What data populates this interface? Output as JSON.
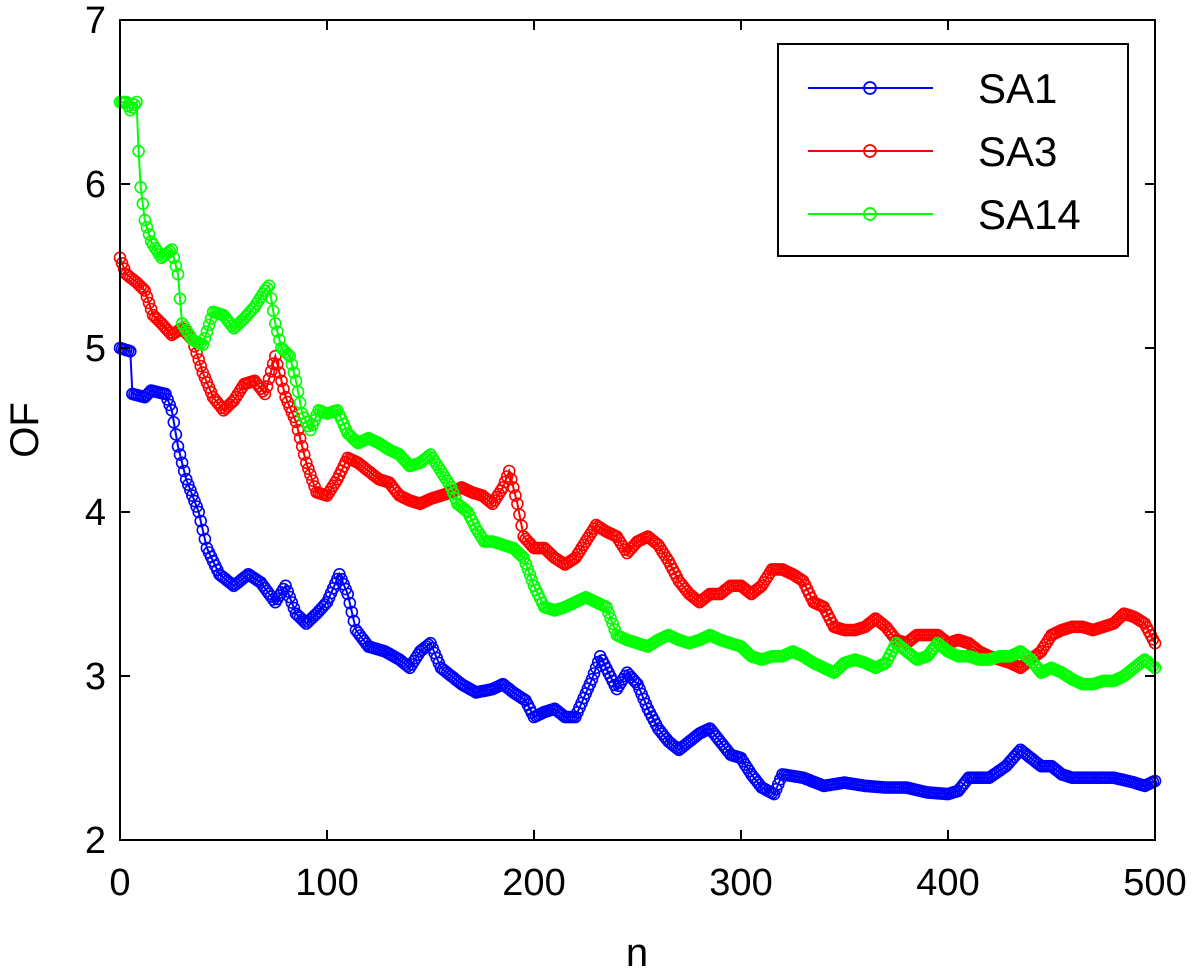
{
  "chart_data": {
    "type": "line",
    "title": "",
    "xlabel": "n",
    "ylabel": "OF",
    "xlim": [
      0,
      500
    ],
    "ylim": [
      2,
      7
    ],
    "xticks": [
      0,
      100,
      200,
      300,
      400,
      500
    ],
    "yticks": [
      2,
      3,
      4,
      5,
      6,
      7
    ],
    "xtick_labels": [
      "0",
      "100",
      "200",
      "300",
      "400",
      "500"
    ],
    "ytick_labels": [
      "2",
      "3",
      "4",
      "5",
      "6",
      "7"
    ],
    "grid": false,
    "legend_position": "top-right",
    "marker": "circle",
    "series": [
      {
        "name": "SA1",
        "color": "#0000ff",
        "points": [
          [
            0,
            5.0
          ],
          [
            5,
            4.98
          ],
          [
            6,
            4.72
          ],
          [
            12,
            4.7
          ],
          [
            15,
            4.74
          ],
          [
            22,
            4.72
          ],
          [
            25,
            4.62
          ],
          [
            28,
            4.4
          ],
          [
            32,
            4.2
          ],
          [
            38,
            4.0
          ],
          [
            42,
            3.78
          ],
          [
            48,
            3.62
          ],
          [
            55,
            3.55
          ],
          [
            62,
            3.62
          ],
          [
            68,
            3.57
          ],
          [
            75,
            3.45
          ],
          [
            80,
            3.55
          ],
          [
            85,
            3.38
          ],
          [
            90,
            3.32
          ],
          [
            95,
            3.38
          ],
          [
            100,
            3.45
          ],
          [
            106,
            3.62
          ],
          [
            110,
            3.5
          ],
          [
            114,
            3.28
          ],
          [
            120,
            3.18
          ],
          [
            128,
            3.15
          ],
          [
            135,
            3.1
          ],
          [
            140,
            3.05
          ],
          [
            145,
            3.15
          ],
          [
            150,
            3.2
          ],
          [
            155,
            3.05
          ],
          [
            160,
            3.0
          ],
          [
            165,
            2.95
          ],
          [
            172,
            2.9
          ],
          [
            180,
            2.92
          ],
          [
            185,
            2.95
          ],
          [
            190,
            2.9
          ],
          [
            196,
            2.85
          ],
          [
            200,
            2.75
          ],
          [
            205,
            2.78
          ],
          [
            210,
            2.8
          ],
          [
            215,
            2.75
          ],
          [
            220,
            2.75
          ],
          [
            228,
            2.98
          ],
          [
            232,
            3.12
          ],
          [
            236,
            3.02
          ],
          [
            240,
            2.92
          ],
          [
            245,
            3.02
          ],
          [
            250,
            2.95
          ],
          [
            255,
            2.8
          ],
          [
            260,
            2.68
          ],
          [
            265,
            2.6
          ],
          [
            270,
            2.55
          ],
          [
            275,
            2.6
          ],
          [
            280,
            2.65
          ],
          [
            285,
            2.68
          ],
          [
            290,
            2.6
          ],
          [
            295,
            2.52
          ],
          [
            300,
            2.5
          ],
          [
            305,
            2.4
          ],
          [
            310,
            2.32
          ],
          [
            316,
            2.28
          ],
          [
            320,
            2.4
          ],
          [
            330,
            2.38
          ],
          [
            340,
            2.33
          ],
          [
            350,
            2.35
          ],
          [
            360,
            2.33
          ],
          [
            370,
            2.32
          ],
          [
            380,
            2.32
          ],
          [
            390,
            2.29
          ],
          [
            400,
            2.28
          ],
          [
            405,
            2.3
          ],
          [
            410,
            2.38
          ],
          [
            420,
            2.38
          ],
          [
            428,
            2.45
          ],
          [
            435,
            2.55
          ],
          [
            440,
            2.5
          ],
          [
            445,
            2.45
          ],
          [
            450,
            2.45
          ],
          [
            455,
            2.4
          ],
          [
            460,
            2.38
          ],
          [
            470,
            2.38
          ],
          [
            480,
            2.38
          ],
          [
            490,
            2.35
          ],
          [
            495,
            2.33
          ],
          [
            500,
            2.36
          ]
        ]
      },
      {
        "name": "SA3",
        "color": "#ff0000",
        "points": [
          [
            0,
            5.55
          ],
          [
            3,
            5.45
          ],
          [
            8,
            5.4
          ],
          [
            12,
            5.35
          ],
          [
            16,
            5.2
          ],
          [
            20,
            5.15
          ],
          [
            25,
            5.08
          ],
          [
            30,
            5.12
          ],
          [
            35,
            5.05
          ],
          [
            40,
            4.85
          ],
          [
            45,
            4.7
          ],
          [
            50,
            4.62
          ],
          [
            55,
            4.68
          ],
          [
            60,
            4.78
          ],
          [
            65,
            4.8
          ],
          [
            70,
            4.72
          ],
          [
            75,
            4.95
          ],
          [
            80,
            4.7
          ],
          [
            85,
            4.55
          ],
          [
            90,
            4.3
          ],
          [
            95,
            4.12
          ],
          [
            100,
            4.1
          ],
          [
            105,
            4.2
          ],
          [
            110,
            4.33
          ],
          [
            115,
            4.3
          ],
          [
            120,
            4.25
          ],
          [
            125,
            4.2
          ],
          [
            130,
            4.18
          ],
          [
            135,
            4.1
          ],
          [
            140,
            4.07
          ],
          [
            145,
            4.05
          ],
          [
            150,
            4.08
          ],
          [
            155,
            4.1
          ],
          [
            160,
            4.12
          ],
          [
            165,
            4.15
          ],
          [
            170,
            4.12
          ],
          [
            175,
            4.1
          ],
          [
            180,
            4.05
          ],
          [
            185,
            4.15
          ],
          [
            188,
            4.25
          ],
          [
            192,
            4.05
          ],
          [
            195,
            3.85
          ],
          [
            200,
            3.78
          ],
          [
            205,
            3.78
          ],
          [
            210,
            3.72
          ],
          [
            215,
            3.68
          ],
          [
            220,
            3.72
          ],
          [
            225,
            3.82
          ],
          [
            230,
            3.92
          ],
          [
            235,
            3.88
          ],
          [
            240,
            3.85
          ],
          [
            245,
            3.75
          ],
          [
            250,
            3.82
          ],
          [
            255,
            3.85
          ],
          [
            260,
            3.8
          ],
          [
            265,
            3.7
          ],
          [
            270,
            3.58
          ],
          [
            275,
            3.5
          ],
          [
            280,
            3.45
          ],
          [
            285,
            3.5
          ],
          [
            290,
            3.5
          ],
          [
            295,
            3.55
          ],
          [
            300,
            3.55
          ],
          [
            305,
            3.5
          ],
          [
            310,
            3.55
          ],
          [
            315,
            3.65
          ],
          [
            320,
            3.65
          ],
          [
            325,
            3.62
          ],
          [
            330,
            3.58
          ],
          [
            335,
            3.45
          ],
          [
            340,
            3.42
          ],
          [
            345,
            3.3
          ],
          [
            350,
            3.28
          ],
          [
            355,
            3.28
          ],
          [
            360,
            3.3
          ],
          [
            365,
            3.35
          ],
          [
            370,
            3.3
          ],
          [
            375,
            3.22
          ],
          [
            380,
            3.2
          ],
          [
            385,
            3.25
          ],
          [
            390,
            3.25
          ],
          [
            395,
            3.25
          ],
          [
            400,
            3.2
          ],
          [
            405,
            3.22
          ],
          [
            410,
            3.2
          ],
          [
            415,
            3.15
          ],
          [
            420,
            3.12
          ],
          [
            425,
            3.1
          ],
          [
            430,
            3.08
          ],
          [
            435,
            3.05
          ],
          [
            440,
            3.1
          ],
          [
            445,
            3.15
          ],
          [
            450,
            3.25
          ],
          [
            455,
            3.28
          ],
          [
            460,
            3.3
          ],
          [
            465,
            3.3
          ],
          [
            470,
            3.28
          ],
          [
            475,
            3.3
          ],
          [
            480,
            3.32
          ],
          [
            485,
            3.38
          ],
          [
            490,
            3.36
          ],
          [
            495,
            3.32
          ],
          [
            500,
            3.2
          ]
        ]
      },
      {
        "name": "SA14",
        "color": "#00ff00",
        "points": [
          [
            0,
            6.5
          ],
          [
            3,
            6.5
          ],
          [
            5,
            6.45
          ],
          [
            8,
            6.5
          ],
          [
            9,
            6.2
          ],
          [
            10,
            5.98
          ],
          [
            12,
            5.78
          ],
          [
            15,
            5.65
          ],
          [
            20,
            5.55
          ],
          [
            25,
            5.6
          ],
          [
            28,
            5.45
          ],
          [
            30,
            5.15
          ],
          [
            35,
            5.05
          ],
          [
            40,
            5.02
          ],
          [
            45,
            5.22
          ],
          [
            50,
            5.2
          ],
          [
            55,
            5.12
          ],
          [
            60,
            5.18
          ],
          [
            65,
            5.25
          ],
          [
            70,
            5.35
          ],
          [
            72,
            5.38
          ],
          [
            75,
            5.15
          ],
          [
            78,
            5.0
          ],
          [
            82,
            4.95
          ],
          [
            85,
            4.8
          ],
          [
            88,
            4.6
          ],
          [
            92,
            4.5
          ],
          [
            96,
            4.62
          ],
          [
            100,
            4.6
          ],
          [
            105,
            4.62
          ],
          [
            110,
            4.48
          ],
          [
            115,
            4.42
          ],
          [
            120,
            4.45
          ],
          [
            125,
            4.42
          ],
          [
            130,
            4.38
          ],
          [
            135,
            4.35
          ],
          [
            140,
            4.28
          ],
          [
            145,
            4.3
          ],
          [
            150,
            4.35
          ],
          [
            155,
            4.25
          ],
          [
            160,
            4.15
          ],
          [
            163,
            4.05
          ],
          [
            168,
            4.0
          ],
          [
            172,
            3.9
          ],
          [
            176,
            3.82
          ],
          [
            180,
            3.82
          ],
          [
            185,
            3.8
          ],
          [
            190,
            3.78
          ],
          [
            195,
            3.72
          ],
          [
            200,
            3.55
          ],
          [
            205,
            3.42
          ],
          [
            210,
            3.4
          ],
          [
            215,
            3.42
          ],
          [
            220,
            3.45
          ],
          [
            225,
            3.48
          ],
          [
            230,
            3.45
          ],
          [
            235,
            3.42
          ],
          [
            240,
            3.25
          ],
          [
            245,
            3.22
          ],
          [
            250,
            3.2
          ],
          [
            255,
            3.18
          ],
          [
            260,
            3.22
          ],
          [
            265,
            3.25
          ],
          [
            270,
            3.22
          ],
          [
            275,
            3.2
          ],
          [
            280,
            3.22
          ],
          [
            285,
            3.25
          ],
          [
            290,
            3.22
          ],
          [
            295,
            3.2
          ],
          [
            300,
            3.18
          ],
          [
            305,
            3.12
          ],
          [
            310,
            3.1
          ],
          [
            315,
            3.12
          ],
          [
            320,
            3.12
          ],
          [
            325,
            3.15
          ],
          [
            330,
            3.12
          ],
          [
            335,
            3.08
          ],
          [
            340,
            3.05
          ],
          [
            345,
            3.02
          ],
          [
            350,
            3.08
          ],
          [
            355,
            3.1
          ],
          [
            360,
            3.08
          ],
          [
            365,
            3.05
          ],
          [
            370,
            3.08
          ],
          [
            375,
            3.2
          ],
          [
            380,
            3.15
          ],
          [
            385,
            3.1
          ],
          [
            390,
            3.12
          ],
          [
            395,
            3.2
          ],
          [
            400,
            3.15
          ],
          [
            405,
            3.12
          ],
          [
            410,
            3.12
          ],
          [
            415,
            3.1
          ],
          [
            420,
            3.1
          ],
          [
            425,
            3.12
          ],
          [
            430,
            3.12
          ],
          [
            435,
            3.15
          ],
          [
            440,
            3.1
          ],
          [
            445,
            3.02
          ],
          [
            450,
            3.05
          ],
          [
            455,
            3.02
          ],
          [
            460,
            2.98
          ],
          [
            465,
            2.95
          ],
          [
            470,
            2.95
          ],
          [
            475,
            2.97
          ],
          [
            480,
            2.97
          ],
          [
            485,
            3.0
          ],
          [
            490,
            3.05
          ],
          [
            495,
            3.1
          ],
          [
            500,
            3.05
          ]
        ]
      }
    ]
  }
}
